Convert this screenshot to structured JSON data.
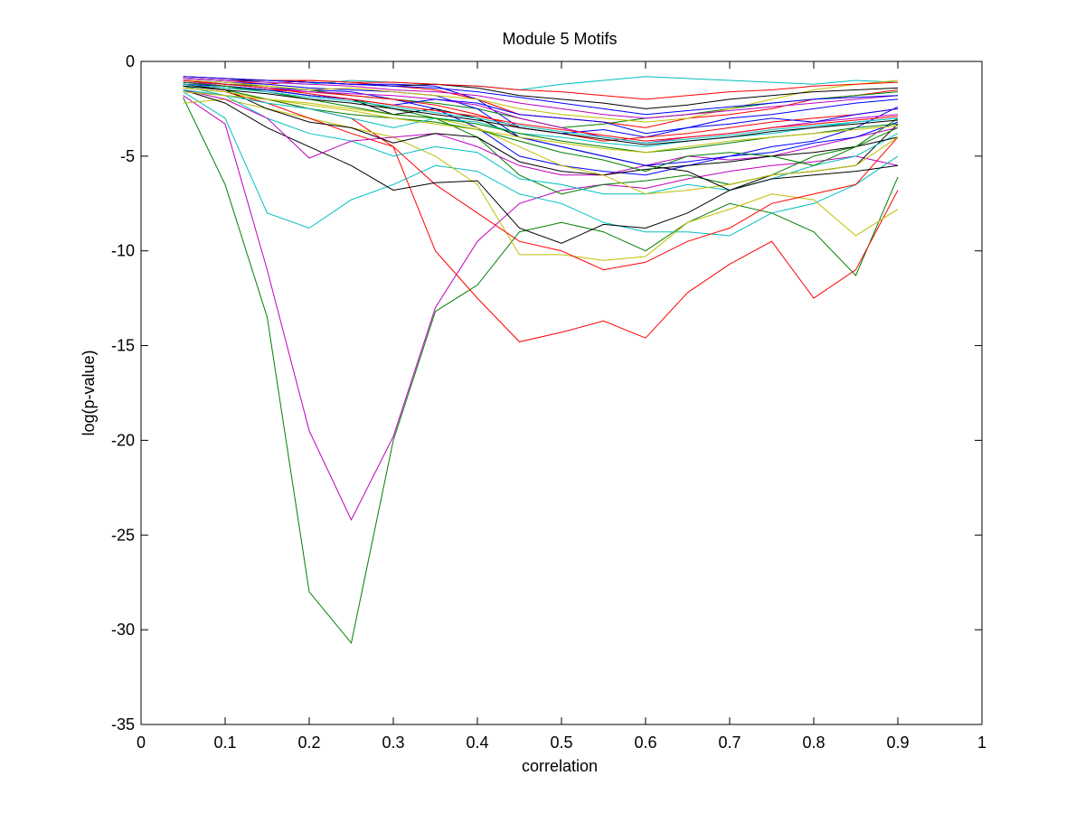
{
  "chart_data": {
    "type": "line",
    "title": "Module 5 Motifs",
    "xlabel": "correlation",
    "ylabel": "log(p-value)",
    "xlim": [
      0,
      1
    ],
    "ylim": [
      -35,
      0
    ],
    "grid": false,
    "x_ticks": [
      "0",
      "0.1",
      "0.2",
      "0.3",
      "0.4",
      "0.5",
      "0.6",
      "0.7",
      "0.8",
      "0.9",
      "1"
    ],
    "y_ticks": [
      "0",
      "-5",
      "-10",
      "-15",
      "-20",
      "-25",
      "-30",
      "-35"
    ],
    "x": [
      0.05,
      0.1,
      0.15,
      0.2,
      0.25,
      0.3,
      0.35,
      0.4,
      0.45,
      0.5,
      0.55,
      0.6,
      0.65,
      0.7,
      0.75,
      0.8,
      0.85,
      0.9
    ],
    "series": [
      {
        "color": "#007f00",
        "values": [
          -1.9,
          -6.5,
          -13.5,
          -28.0,
          -30.7,
          -20.0,
          -13.2,
          -11.8,
          -9.0,
          -8.5,
          -9.0,
          -10.0,
          -8.5,
          -7.5,
          -8.0,
          -9.0,
          -11.3,
          -6.1
        ]
      },
      {
        "color": "#bf00bf",
        "values": [
          -1.8,
          -3.3,
          -11.0,
          -19.5,
          -24.2,
          -19.8,
          -13.0,
          -9.5,
          -7.5,
          -6.8,
          -6.5,
          -6.7,
          -6.2,
          -5.8,
          -5.5,
          -5.3,
          -5.0,
          -5.5
        ]
      },
      {
        "color": "#ff0000",
        "values": [
          -1.5,
          -1.8,
          -2.0,
          -2.5,
          -3.0,
          -4.5,
          -10.0,
          -12.5,
          -14.8,
          -14.3,
          -13.7,
          -14.6,
          -12.2,
          -10.7,
          -9.5,
          -12.5,
          -11.0,
          -6.8
        ]
      },
      {
        "color": "#00bfbf",
        "values": [
          -1.6,
          -3.0,
          -8.0,
          -8.8,
          -7.3,
          -6.5,
          -5.5,
          -5.8,
          -7.0,
          -7.5,
          -8.5,
          -9.0,
          -9.0,
          -9.2,
          -8.0,
          -7.5,
          -6.5,
          -5.0
        ]
      },
      {
        "color": "#bfbf00",
        "values": [
          -2.2,
          -2.0,
          -2.5,
          -3.0,
          -3.5,
          -4.0,
          -5.0,
          -6.5,
          -10.2,
          -10.2,
          -10.5,
          -10.3,
          -8.5,
          -7.8,
          -7.0,
          -7.3,
          -9.2,
          -7.8
        ]
      },
      {
        "color": "#ff0000",
        "values": [
          -1.4,
          -1.6,
          -2.2,
          -3.0,
          -3.8,
          -4.5,
          -6.5,
          -8.0,
          -9.5,
          -10.0,
          -11.0,
          -10.6,
          -9.5,
          -8.8,
          -7.5,
          -7.0,
          -6.5,
          -4.0
        ]
      },
      {
        "color": "#000000",
        "values": [
          -1.5,
          -2.2,
          -3.5,
          -4.5,
          -5.5,
          -6.8,
          -6.4,
          -6.3,
          -8.8,
          -9.6,
          -8.6,
          -8.8,
          -8.0,
          -6.8,
          -6.0,
          -5.8,
          -5.5,
          -3.3
        ]
      },
      {
        "color": "#0000ff",
        "values": [
          -1.0,
          -1.2,
          -1.4,
          -1.5,
          -1.6,
          -2.0,
          -2.5,
          -3.5,
          -5.0,
          -5.5,
          -5.8,
          -6.0,
          -5.5,
          -5.0,
          -4.5,
          -4.2,
          -3.5,
          -2.4
        ]
      },
      {
        "color": "#007f00",
        "values": [
          -1.2,
          -1.4,
          -1.5,
          -1.8,
          -2.0,
          -2.5,
          -3.0,
          -4.0,
          -6.0,
          -7.0,
          -6.5,
          -6.3,
          -6.0,
          -6.5,
          -6.0,
          -5.0,
          -4.5,
          -3.0
        ]
      },
      {
        "color": "#ff0000",
        "values": [
          -0.9,
          -1.0,
          -1.2,
          -1.0,
          -1.1,
          -1.3,
          -1.5,
          -2.0,
          -2.8,
          -3.0,
          -3.2,
          -3.5,
          -3.0,
          -2.8,
          -2.5,
          -2.0,
          -1.8,
          -1.5
        ]
      },
      {
        "color": "#00bfbf",
        "values": [
          -1.3,
          -1.8,
          -3.0,
          -3.8,
          -4.2,
          -5.0,
          -4.5,
          -4.8,
          -6.2,
          -6.5,
          -7.0,
          -7.0,
          -6.5,
          -6.8,
          -6.2,
          -5.5,
          -5.0,
          -3.8
        ]
      },
      {
        "color": "#bf00bf",
        "values": [
          -1.5,
          -2.0,
          -3.0,
          -5.1,
          -4.2,
          -4.0,
          -3.8,
          -4.5,
          -5.5,
          -6.0,
          -6.0,
          -5.5,
          -5.0,
          -5.2,
          -5.0,
          -4.5,
          -4.0,
          -3.5
        ]
      },
      {
        "color": "#000000",
        "values": [
          -1.2,
          -1.5,
          -2.5,
          -3.2,
          -3.5,
          -4.3,
          -3.8,
          -4.0,
          -5.3,
          -5.8,
          -6.0,
          -5.7,
          -5.5,
          -5.3,
          -5.0,
          -4.8,
          -4.5,
          -4.0
        ]
      },
      {
        "color": "#0000ff",
        "values": [
          -0.8,
          -0.9,
          -1.0,
          -1.1,
          -1.2,
          -1.2,
          -1.3,
          -2.0,
          -3.5,
          -3.8,
          -3.6,
          -4.0,
          -3.5,
          -3.0,
          -2.8,
          -2.5,
          -2.2,
          -2.0
        ]
      },
      {
        "color": "#bfbf00",
        "values": [
          -1.4,
          -1.6,
          -2.0,
          -2.2,
          -2.5,
          -2.8,
          -3.0,
          -3.5,
          -4.5,
          -5.5,
          -6.0,
          -7.0,
          -6.8,
          -6.5,
          -6.0,
          -5.8,
          -5.5,
          -4.0
        ]
      },
      {
        "color": "#007f00",
        "values": [
          -1.0,
          -1.2,
          -1.3,
          -1.5,
          -1.8,
          -2.0,
          -2.2,
          -2.5,
          -3.0,
          -3.5,
          -3.3,
          -3.0,
          -2.8,
          -2.5,
          -2.2,
          -2.0,
          -1.8,
          -1.6
        ]
      },
      {
        "color": "#00bfbf",
        "values": [
          -0.9,
          -1.0,
          -1.1,
          -1.2,
          -1.0,
          -1.1,
          -1.2,
          -1.3,
          -1.5,
          -1.2,
          -1.0,
          -0.8,
          -0.9,
          -1.0,
          -1.1,
          -1.2,
          -1.0,
          -1.1
        ]
      },
      {
        "color": "#000000",
        "values": [
          -1.1,
          -1.3,
          -1.5,
          -1.8,
          -2.0,
          -2.8,
          -2.5,
          -3.0,
          -4.0,
          -4.5,
          -5.0,
          -5.5,
          -5.8,
          -6.8,
          -6.2,
          -6.0,
          -5.8,
          -5.5
        ]
      },
      {
        "color": "#ff0000",
        "values": [
          -1.2,
          -1.3,
          -1.5,
          -1.6,
          -1.8,
          -2.0,
          -2.3,
          -2.8,
          -3.5,
          -3.8,
          -4.2,
          -4.0,
          -3.8,
          -3.5,
          -3.2,
          -3.0,
          -2.8,
          -2.5
        ]
      },
      {
        "color": "#0000ff",
        "values": [
          -1.0,
          -1.1,
          -1.2,
          -1.4,
          -1.5,
          -1.6,
          -1.8,
          -2.5,
          -4.0,
          -4.5,
          -5.0,
          -5.5,
          -5.3,
          -5.0,
          -4.8,
          -4.3,
          -4.0,
          -3.2
        ]
      },
      {
        "color": "#bf00bf",
        "values": [
          -1.1,
          -1.2,
          -1.4,
          -1.6,
          -1.7,
          -1.8,
          -2.0,
          -2.3,
          -3.0,
          -3.5,
          -4.0,
          -4.3,
          -4.0,
          -3.8,
          -3.5,
          -3.2,
          -3.0,
          -2.8
        ]
      },
      {
        "color": "#007f00",
        "values": [
          -1.3,
          -1.5,
          -2.0,
          -2.5,
          -2.8,
          -3.0,
          -3.2,
          -3.6,
          -4.2,
          -4.8,
          -5.2,
          -5.8,
          -5.0,
          -4.8,
          -5.0,
          -5.5,
          -4.5,
          -3.5
        ]
      },
      {
        "color": "#bfbf00",
        "values": [
          -1.0,
          -1.1,
          -1.3,
          -1.5,
          -1.4,
          -1.6,
          -1.8,
          -2.0,
          -2.5,
          -2.8,
          -3.0,
          -3.2,
          -3.0,
          -2.5,
          -2.0,
          -1.5,
          -1.2,
          -1.0
        ]
      },
      {
        "color": "#000000",
        "values": [
          -0.9,
          -1.0,
          -1.0,
          -1.1,
          -1.2,
          -1.3,
          -1.2,
          -1.4,
          -1.8,
          -2.0,
          -2.2,
          -2.5,
          -2.3,
          -2.0,
          -1.8,
          -1.6,
          -1.5,
          -1.4
        ]
      },
      {
        "color": "#ff0000",
        "values": [
          -0.8,
          -0.9,
          -1.0,
          -1.0,
          -1.1,
          -1.1,
          -1.2,
          -1.3,
          -1.5,
          -1.6,
          -1.8,
          -2.0,
          -1.8,
          -1.6,
          -1.5,
          -1.3,
          -1.2,
          -1.1
        ]
      },
      {
        "color": "#00bfbf",
        "values": [
          -1.5,
          -1.8,
          -2.2,
          -2.5,
          -3.0,
          -3.5,
          -3.0,
          -3.2,
          -3.8,
          -4.0,
          -4.3,
          -4.5,
          -4.2,
          -4.0,
          -3.8,
          -3.5,
          -3.2,
          -3.0
        ]
      },
      {
        "color": "#0000ff",
        "values": [
          -1.2,
          -1.3,
          -1.5,
          -1.8,
          -2.0,
          -2.3,
          -2.0,
          -2.2,
          -2.8,
          -3.0,
          -3.2,
          -3.8,
          -3.5,
          -3.3,
          -3.0,
          -3.2,
          -2.8,
          -2.5
        ]
      },
      {
        "color": "#bf00bf",
        "values": [
          -0.9,
          -1.0,
          -1.1,
          -1.2,
          -1.3,
          -1.5,
          -1.6,
          -1.8,
          -2.2,
          -2.5,
          -2.8,
          -3.0,
          -2.8,
          -2.6,
          -2.4,
          -2.2,
          -2.0,
          -1.8
        ]
      },
      {
        "color": "#007f00",
        "values": [
          -1.1,
          -1.3,
          -1.6,
          -2.0,
          -2.4,
          -2.8,
          -3.0,
          -3.3,
          -3.8,
          -4.2,
          -4.5,
          -4.8,
          -4.6,
          -4.3,
          -4.0,
          -3.8,
          -3.5,
          -3.3
        ]
      },
      {
        "color": "#bfbf00",
        "values": [
          -1.6,
          -1.8,
          -2.0,
          -2.3,
          -2.6,
          -3.0,
          -3.3,
          -3.6,
          -4.0,
          -4.3,
          -4.6,
          -4.8,
          -4.5,
          -4.2,
          -4.0,
          -3.8,
          -3.6,
          -3.4
        ]
      },
      {
        "color": "#000000",
        "values": [
          -1.3,
          -1.5,
          -1.7,
          -2.0,
          -2.2,
          -2.5,
          -2.8,
          -3.1,
          -3.5,
          -3.8,
          -4.1,
          -4.4,
          -4.2,
          -4.0,
          -3.7,
          -3.5,
          -3.3,
          -3.1
        ]
      },
      {
        "color": "#ff0000",
        "values": [
          -1.0,
          -1.2,
          -1.4,
          -1.7,
          -2.0,
          -2.3,
          -2.6,
          -2.9,
          -3.3,
          -3.6,
          -3.9,
          -4.2,
          -4.0,
          -3.8,
          -3.5,
          -3.3,
          -3.1,
          -2.9
        ]
      },
      {
        "color": "#0000ff",
        "values": [
          -0.8,
          -0.9,
          -1.0,
          -1.1,
          -1.2,
          -1.3,
          -1.4,
          -1.6,
          -1.9,
          -2.2,
          -2.5,
          -2.8,
          -2.6,
          -2.4,
          -2.2,
          -2.0,
          -1.9,
          -1.8
        ]
      },
      {
        "color": "#00bfbf",
        "values": [
          -1.2,
          -1.4,
          -1.6,
          -1.9,
          -2.1,
          -2.4,
          -2.7,
          -3.0,
          -3.4,
          -3.7,
          -4.0,
          -4.3,
          -4.1,
          -3.9,
          -3.6,
          -3.4,
          -3.2,
          -3.0
        ]
      }
    ]
  }
}
